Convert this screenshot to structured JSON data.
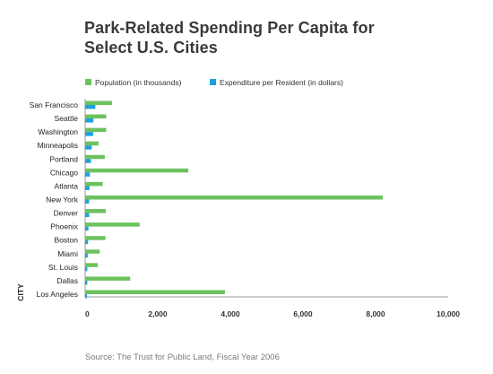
{
  "title": "Park-Related Spending Per Capita for Select U.S. Cities",
  "source": "Source: The Trust for Public Land, Fiscal Year 2006",
  "colors": {
    "population": "#6cc25d",
    "expenditure": "#1aa3dc"
  },
  "chart_data": {
    "type": "bar",
    "orientation": "horizontal",
    "title": "Park-Related Spending Per Capita for Select U.S. Cities",
    "ylabel": "CITY",
    "xlabel": "",
    "xlim": [
      0,
      10000
    ],
    "xticks": [
      0,
      2000,
      4000,
      6000,
      8000,
      10000
    ],
    "xtick_labels": [
      "0",
      "2,000",
      "4,000",
      "6,000",
      "8,000",
      "10,000"
    ],
    "legend_position": "top",
    "grid": false,
    "categories": [
      "San Francisco",
      "Seattle",
      "Washington",
      "Minneapolis",
      "Portland",
      "Chicago",
      "Atlanta",
      "New York",
      "Denver",
      "Phoenix",
      "Boston",
      "Miami",
      "St. Louis",
      "Dallas",
      "Los Angeles"
    ],
    "series": [
      {
        "name": "Population (in thousands)",
        "values": [
          740,
          580,
          580,
          370,
          540,
          2840,
          480,
          8200,
          570,
          1500,
          560,
          400,
          350,
          1240,
          3850
        ]
      },
      {
        "name": "Expenditure per Resident (in dollars)",
        "values": [
          280,
          230,
          220,
          180,
          160,
          130,
          120,
          110,
          110,
          90,
          80,
          70,
          60,
          60,
          50
        ]
      }
    ]
  }
}
